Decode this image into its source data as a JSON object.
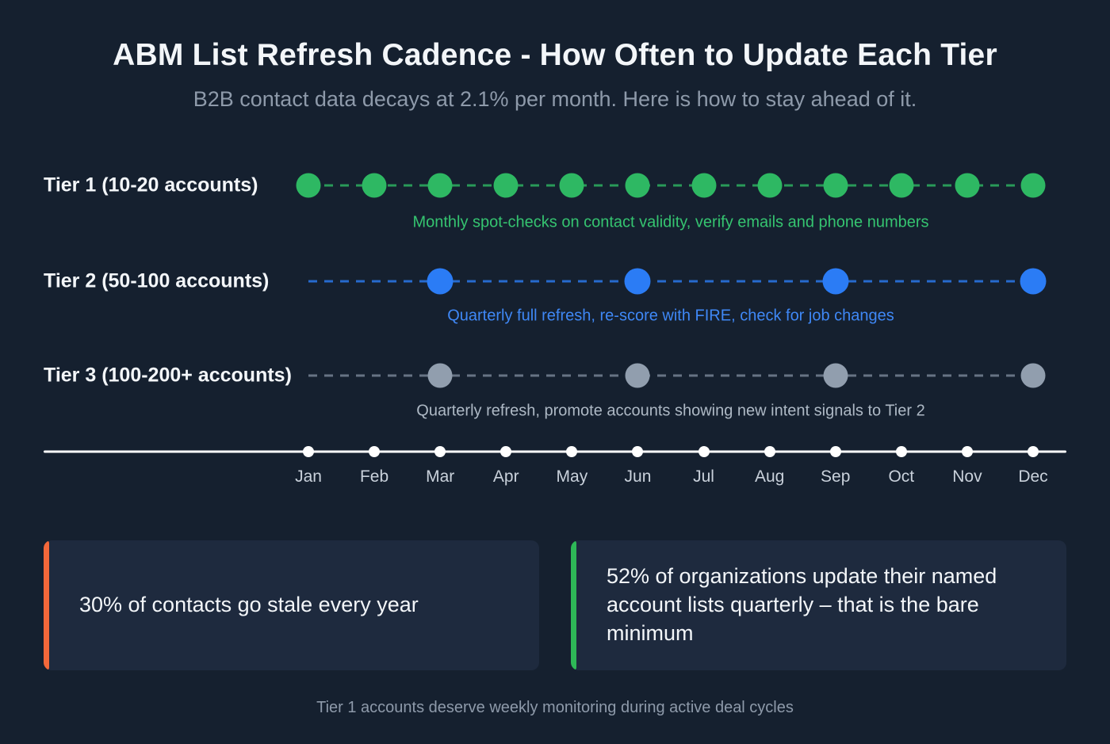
{
  "header": {
    "title": "ABM List Refresh Cadence - How Often to Update Each Tier",
    "subtitle": "B2B contact data decays at 2.1% per month. Here is how to stay ahead of it."
  },
  "months": [
    "Jan",
    "Feb",
    "Mar",
    "Apr",
    "May",
    "Jun",
    "Jul",
    "Aug",
    "Sep",
    "Oct",
    "Nov",
    "Dec"
  ],
  "tiers": [
    {
      "label": "Tier 1 (10-20 accounts)",
      "cadence": "monthly",
      "active_months": [
        "Jan",
        "Feb",
        "Mar",
        "Apr",
        "May",
        "Jun",
        "Jul",
        "Aug",
        "Sep",
        "Oct",
        "Nov",
        "Dec"
      ],
      "caption": "Monthly spot-checks on contact validity, verify emails and phone numbers",
      "dot_color": "#2eb863",
      "line_color": "#2eb863",
      "caption_color": "#35c470"
    },
    {
      "label": "Tier 2 (50-100 accounts)",
      "cadence": "quarterly",
      "active_months": [
        "Mar",
        "Jun",
        "Sep",
        "Dec"
      ],
      "caption": "Quarterly full refresh, re-score with FIRE, check for job changes",
      "dot_color": "#2b7cf5",
      "line_color": "#2b7cf5",
      "caption_color": "#3f88f6"
    },
    {
      "label": "Tier 3 (100-200+ accounts)",
      "cadence": "quarterly",
      "active_months": [
        "Mar",
        "Jun",
        "Sep",
        "Dec"
      ],
      "caption": "Quarterly refresh, promote accounts showing new intent signals to Tier 2",
      "dot_color": "#919eae",
      "line_color": "#7b8899",
      "caption_color": "#aeb9c5"
    }
  ],
  "stats": [
    {
      "accent_color": "#f4683a",
      "text": "30% of contacts go stale every year"
    },
    {
      "accent_color": "#2eb857",
      "text": "52% of organizations update their named account lists quarterly – that is the bare minimum"
    }
  ],
  "footer": "Tier 1 accounts deserve weekly monitoring during active deal cycles",
  "chart_data": {
    "type": "scatter",
    "title": "ABM List Refresh Cadence - How Often to Update Each Tier",
    "subtitle": "B2B contact data decays at 2.1% per month. Here is how to stay ahead of it.",
    "x": [
      "Jan",
      "Feb",
      "Mar",
      "Apr",
      "May",
      "Jun",
      "Jul",
      "Aug",
      "Sep",
      "Oct",
      "Nov",
      "Dec"
    ],
    "series": [
      {
        "name": "Tier 1 (10-20 accounts)",
        "cadence": "monthly",
        "refresh_months": [
          "Jan",
          "Feb",
          "Mar",
          "Apr",
          "May",
          "Jun",
          "Jul",
          "Aug",
          "Sep",
          "Oct",
          "Nov",
          "Dec"
        ],
        "annotation": "Monthly spot-checks on contact validity, verify emails and phone numbers",
        "color": "#2eb863"
      },
      {
        "name": "Tier 2 (50-100 accounts)",
        "cadence": "quarterly",
        "refresh_months": [
          "Mar",
          "Jun",
          "Sep",
          "Dec"
        ],
        "annotation": "Quarterly full refresh, re-score with FIRE, check for job changes",
        "color": "#2b7cf5"
      },
      {
        "name": "Tier 3 (100-200+ accounts)",
        "cadence": "quarterly",
        "refresh_months": [
          "Mar",
          "Jun",
          "Sep",
          "Dec"
        ],
        "annotation": "Quarterly refresh, promote accounts showing new intent signals to Tier 2",
        "color": "#919eae"
      }
    ],
    "annotations": [
      "30% of contacts go stale every year",
      "52% of organizations update their named account lists quarterly – that is the bare minimum",
      "Tier 1 accounts deserve weekly monitoring during active deal cycles"
    ],
    "grid": false,
    "legend_position": "row-labels-left"
  }
}
